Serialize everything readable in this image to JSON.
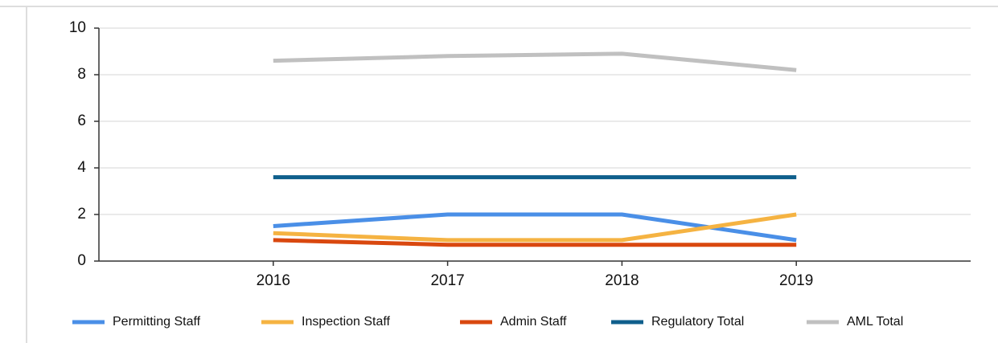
{
  "chart_data": {
    "type": "line",
    "categories": [
      "2016",
      "2017",
      "2018",
      "2019"
    ],
    "series": [
      {
        "name": "Permitting Staff",
        "color": "#4a8fe7",
        "values": [
          1.5,
          2.0,
          2.0,
          0.9
        ]
      },
      {
        "name": "Inspection Staff",
        "color": "#f5b342",
        "values": [
          1.2,
          0.9,
          0.9,
          2.0
        ]
      },
      {
        "name": "Admin Staff",
        "color": "#d9480f",
        "values": [
          0.9,
          0.7,
          0.7,
          0.7
        ]
      },
      {
        "name": "Regulatory Total",
        "color": "#0f5f8c",
        "values": [
          3.6,
          3.6,
          3.6,
          3.6
        ]
      },
      {
        "name": "AML Total",
        "color": "#c0c0c0",
        "values": [
          8.6,
          8.8,
          8.9,
          8.2
        ]
      }
    ],
    "ylim": [
      0,
      10
    ],
    "yticks": [
      0,
      2,
      4,
      6,
      8,
      10
    ],
    "grid": true,
    "legend": "bottom"
  }
}
